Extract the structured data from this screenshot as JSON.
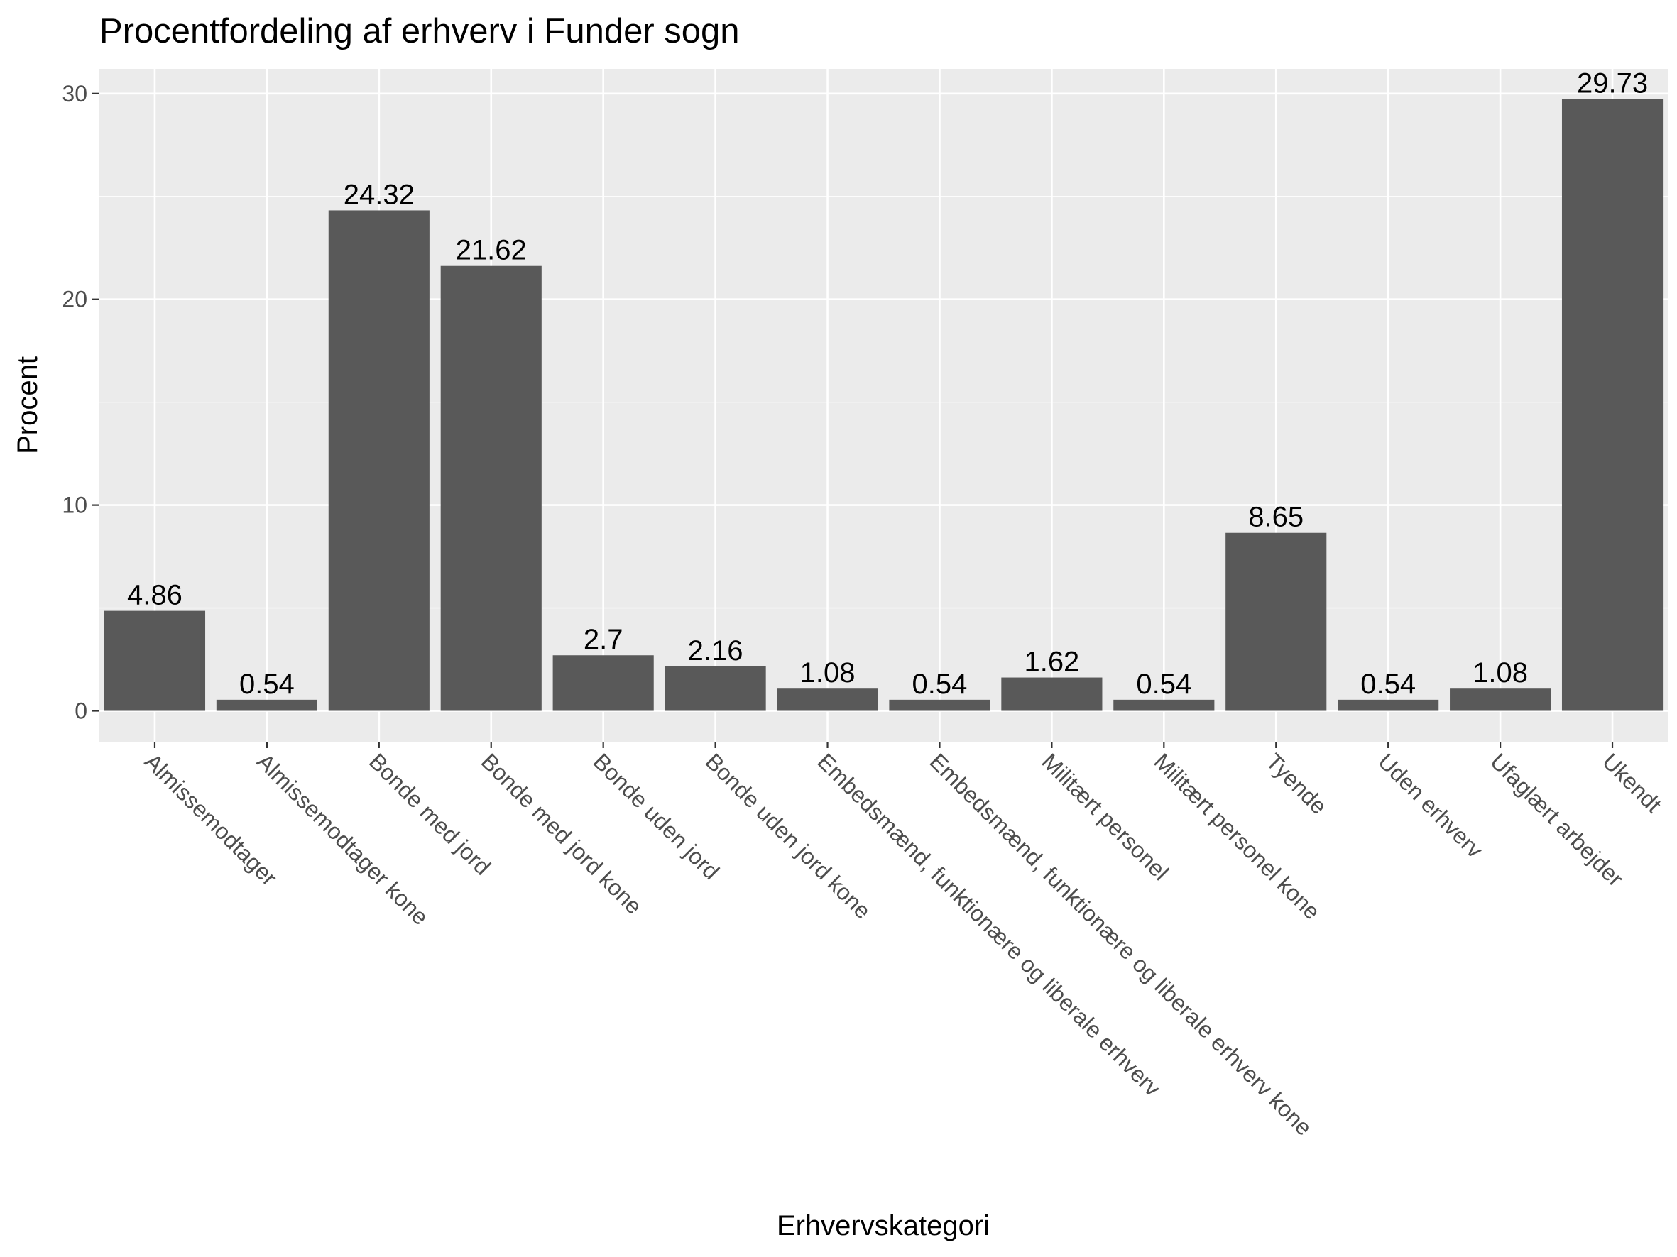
{
  "chart_data": {
    "type": "bar",
    "title": "Procentfordeling af erhverv i Funder sogn",
    "xlabel": "Erhvervskategori",
    "ylabel": "Procent",
    "ylim": [
      -1.5,
      31.2
    ],
    "yticks": [
      0,
      10,
      20,
      30
    ],
    "grid": true,
    "categories": [
      "Almissemodtager",
      "Almissemodtager kone",
      "Bonde med jord",
      "Bonde med jord kone",
      "Bonde uden jord",
      "Bonde uden jord kone",
      "Embedsmænd, funktionære og liberale erhverv",
      "Embedsmænd, funktionære og liberale erhverv kone",
      "Militært personel",
      "Militært personel kone",
      "Tyende",
      "Uden erhverv",
      "Ufaglært arbejder",
      "Ukendt"
    ],
    "values": [
      4.86,
      0.54,
      24.32,
      21.62,
      2.7,
      2.16,
      1.08,
      0.54,
      1.62,
      0.54,
      8.65,
      0.54,
      1.08,
      29.73
    ],
    "labels": [
      "4.86",
      "0.54",
      "24.32",
      "21.62",
      "2.7",
      "2.16",
      "1.08",
      "0.54",
      "1.62",
      "0.54",
      "8.65",
      "0.54",
      "1.08",
      "29.73"
    ],
    "colors": {
      "panel": "#ebebeb",
      "grid": "#ffffff",
      "bar": "#595959",
      "tick": "#333333",
      "tick_text": "#4d4d4d",
      "text": "#000000"
    }
  }
}
